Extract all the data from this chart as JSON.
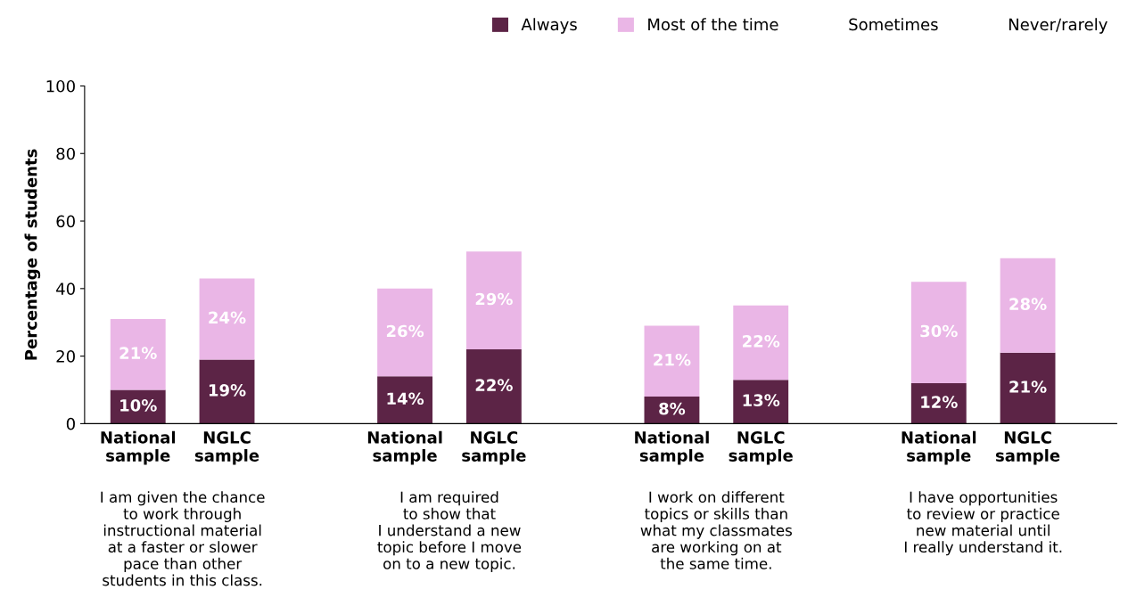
{
  "chart_data": {
    "type": "bar",
    "stacked": true,
    "ylabel": "Percentage of students",
    "categories": [
      "National\nsample",
      "NGLC\nsample",
      "National\nsample",
      "NGLC\nsample",
      "National\nsample",
      "NGLC\nsample",
      "National\nsample",
      "NGLC\nsample"
    ],
    "series": [
      {
        "name": "Always",
        "color": "#5c2446",
        "values": [
          10,
          19,
          14,
          22,
          8,
          13,
          12,
          21
        ],
        "value_labels": [
          "10%",
          "19%",
          "14%",
          "22%",
          "8%",
          "13%",
          "12%",
          "21%"
        ]
      },
      {
        "name": "Most of the time",
        "color": "#eab6e6",
        "values": [
          21,
          24,
          26,
          29,
          21,
          22,
          30,
          28
        ],
        "value_labels": [
          "21%",
          "24%",
          "26%",
          "29%",
          "21%",
          "22%",
          "30%",
          "28%"
        ]
      },
      {
        "name": "Sometimes",
        "values": [
          null,
          null,
          null,
          null,
          null,
          null,
          null,
          null
        ]
      },
      {
        "name": "Never/rarely",
        "values": [
          null,
          null,
          null,
          null,
          null,
          null,
          null,
          null
        ]
      }
    ],
    "ylim": [
      0,
      100
    ],
    "yticks": [
      0,
      20,
      40,
      60,
      80,
      100
    ],
    "grid": false,
    "legend": "top right",
    "annotations": [
      "I am given the chance\nto work through\ninstructional material\nat a faster or slower\npace than other\nstudents in this class.",
      "I am required\nto show that\nI understand a new\ntopic before I move\non to a new topic.",
      "I work on different\ntopics or skills than\nwhat my classmates\nare working on at\nthe same time.",
      "I have opportunities\nto review or practice\nnew material until\nI really understand it."
    ]
  }
}
